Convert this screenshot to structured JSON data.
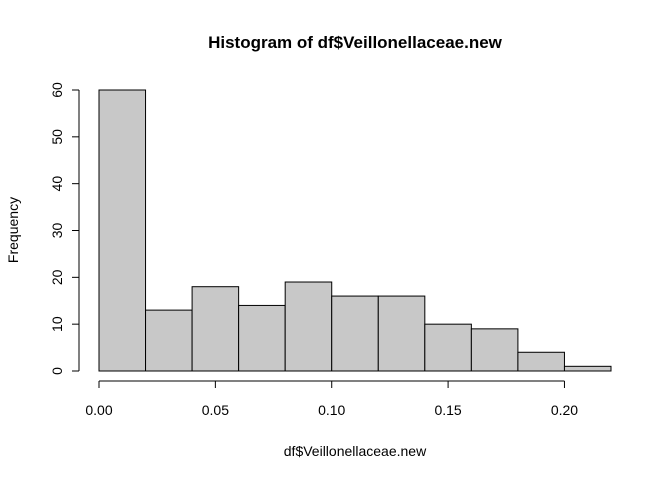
{
  "chart_data": {
    "type": "bar",
    "subtype": "histogram",
    "title": "Histogram of df$Veillonellaceae.new",
    "xlabel": "df$Veillonellaceae.new",
    "ylabel": "Frequency",
    "bins": [
      {
        "start": 0.0,
        "end": 0.02,
        "count": 60
      },
      {
        "start": 0.02,
        "end": 0.04,
        "count": 13
      },
      {
        "start": 0.04,
        "end": 0.06,
        "count": 18
      },
      {
        "start": 0.06,
        "end": 0.08,
        "count": 14
      },
      {
        "start": 0.08,
        "end": 0.1,
        "count": 19
      },
      {
        "start": 0.1,
        "end": 0.12,
        "count": 16
      },
      {
        "start": 0.12,
        "end": 0.14,
        "count": 16
      },
      {
        "start": 0.14,
        "end": 0.16,
        "count": 10
      },
      {
        "start": 0.16,
        "end": 0.18,
        "count": 9
      },
      {
        "start": 0.18,
        "end": 0.2,
        "count": 4
      },
      {
        "start": 0.2,
        "end": 0.22,
        "count": 1
      }
    ],
    "xticks": [
      "0.00",
      "0.05",
      "0.10",
      "0.15",
      "0.20"
    ],
    "yticks": [
      "0",
      "10",
      "20",
      "30",
      "40",
      "50",
      "60"
    ],
    "xlim": [
      0,
      0.22
    ],
    "ylim": [
      0,
      60
    ],
    "grid": false,
    "colors": {
      "bar_fill": "#c8c8c8",
      "bar_stroke": "#000000"
    }
  }
}
